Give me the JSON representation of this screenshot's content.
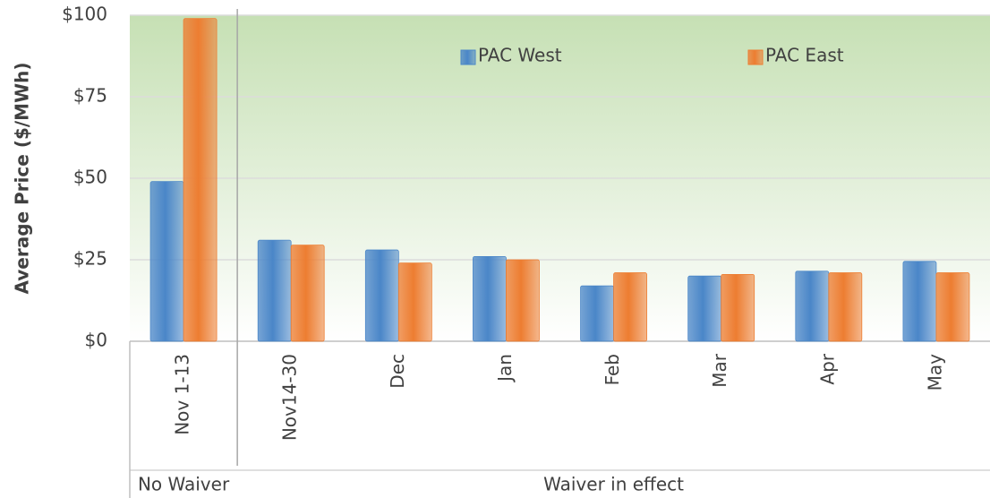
{
  "chart_data": {
    "type": "bar",
    "y_label": "Average Price ($/MWh)",
    "groups": [
      {
        "name": "No Waiver",
        "categories": [
          "Nov 1-13"
        ]
      },
      {
        "name": "Waiver in effect",
        "categories": [
          "Nov14-30",
          "Dec",
          "Jan",
          "Feb",
          "Mar",
          "Apr",
          "May"
        ]
      }
    ],
    "series": [
      {
        "name": "PAC West",
        "color": "#4a86c8",
        "values": [
          49,
          31,
          28,
          26,
          17,
          20,
          21.5,
          24.5
        ]
      },
      {
        "name": "PAC East",
        "color": "#ed7d31",
        "values": [
          99,
          29.5,
          24,
          25,
          21,
          20.5,
          21,
          21
        ]
      }
    ],
    "ylim": [
      0,
      100
    ],
    "yticks": [
      {
        "value": 0,
        "label": "$0"
      },
      {
        "value": 25,
        "label": "$25"
      },
      {
        "value": 50,
        "label": "$50"
      },
      {
        "value": 75,
        "label": "$75"
      },
      {
        "value": 100,
        "label": "$100"
      }
    ],
    "grid": true
  }
}
